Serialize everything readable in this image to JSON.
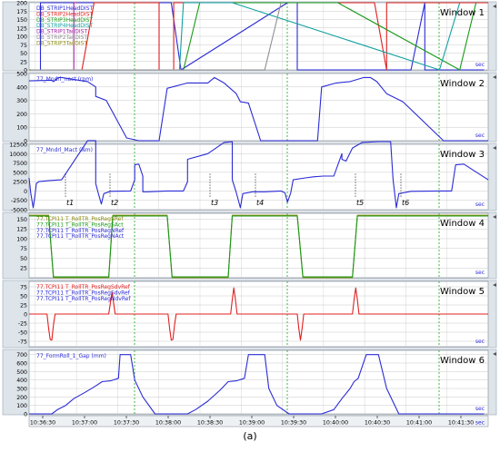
{
  "caption": "(a)",
  "x_ticks": [
    "10:36:30",
    "10:37:00",
    "10:37:30",
    "10:38:00",
    "10:38:30",
    "10:39:00",
    "10:39:30",
    "10:40:00",
    "10:40:30",
    "10:41:00",
    "10:41:30",
    "10:42:00"
  ],
  "sec_label": "sec",
  "time_markers": [
    "t1",
    "t2",
    "t3",
    "t4",
    "t5",
    "t6"
  ],
  "colors": {
    "blue": "#2b2bd6",
    "red": "#e02020",
    "green": "#1a9a1a",
    "teal": "#12a0a0",
    "olive": "#8a8a10",
    "purple": "#a020a0",
    "gray": "#909090",
    "panel_bg": "#dde4ea",
    "plot_bg": "#ffffff",
    "grid": "#c8c8c8",
    "vline": "#30b030"
  },
  "chart_data": [
    {
      "type": "line",
      "title": "Window 1",
      "ylim": [
        0,
        200
      ],
      "yticks": [
        "0",
        "25",
        "50",
        "75",
        "100",
        "125",
        "150",
        "175",
        "200"
      ],
      "legend": [
        "DB_STRIP1HeadDIST",
        "DB_STRIP2HeadDIST",
        "DB_STRIP3HeadDIST",
        "DB_STRIP4HeadDIST",
        "DB_STRIP1TailDIST",
        "DB_STRIP2TailDIST",
        "DB_STRIP3TailDIST"
      ],
      "series": [
        {
          "name": "DB_STRIP1HeadDIST",
          "color": "blue",
          "x": [
            0,
            14,
            14,
            175,
            187,
            187,
            318,
            330,
            330,
            470,
            487,
            487,
            560
          ],
          "y": [
            0,
            0,
            200,
            200,
            0,
            0,
            200,
            200,
            0,
            0,
            200,
            0,
            0
          ]
        },
        {
          "name": "DB_STRIP2HeadDIST",
          "color": "red",
          "x": [
            0,
            65,
            80,
            80,
            160,
            160,
            178,
            178,
            300,
            320,
            320,
            425,
            440,
            440,
            565
          ],
          "y": [
            0,
            0,
            200,
            200,
            200,
            0,
            0,
            200,
            200,
            200,
            200,
            200,
            0,
            200,
            200
          ]
        },
        {
          "name": "DB_STRIP3HeadDIST",
          "color": "green",
          "x": [
            0,
            190,
            210,
            210,
            365,
            380,
            530,
            550
          ],
          "y": [
            0,
            0,
            200,
            200,
            200,
            200,
            0,
            200
          ]
        },
        {
          "name": "DB_STRIP4HeadDIST",
          "color": "teal",
          "x": [
            0,
            185,
            190,
            250,
            505,
            530
          ],
          "y": [
            0,
            0,
            200,
            200,
            0,
            200
          ]
        },
        {
          "name": "DB_STRIP1TailDIST",
          "color": "purple",
          "x": [
            0,
            55,
            55,
            60
          ],
          "y": [
            0,
            0,
            200,
            200
          ]
        },
        {
          "name": "DB_STRIP2TailDIST",
          "color": "gray",
          "x": [
            0,
            290,
            310,
            310
          ],
          "y": [
            0,
            0,
            200,
            200
          ]
        },
        {
          "name": "DB_STRIP3TailDIST",
          "color": "olive",
          "x": [
            0,
            1,
            2
          ],
          "y": [
            0,
            0,
            0
          ]
        }
      ]
    },
    {
      "type": "line",
      "title": "Window 2",
      "ylim": [
        0,
        500
      ],
      "yticks": [
        "0",
        "100",
        "200",
        "300",
        "400",
        "500"
      ],
      "legend": [
        "77_Mndrl_nact (rpm)"
      ],
      "series": [
        {
          "name": "77_Mndrl_nact (rpm)",
          "color": "blue",
          "x": [
            0,
            28,
            30,
            36,
            40,
            72,
            82,
            82,
            95,
            120,
            135,
            135,
            155,
            160,
            170,
            195,
            195,
            220,
            228,
            228,
            240,
            255,
            260,
            270,
            285,
            305,
            355,
            360,
            378,
            378,
            395,
            412,
            420,
            428,
            440,
            460,
            510,
            520,
            550,
            565
          ],
          "y": [
            445,
            450,
            440,
            470,
            470,
            440,
            400,
            330,
            300,
            20,
            0,
            0,
            0,
            0,
            390,
            430,
            430,
            430,
            470,
            470,
            430,
            350,
            290,
            280,
            0,
            0,
            0,
            400,
            430,
            430,
            440,
            470,
            470,
            440,
            350,
            290,
            0,
            0,
            0,
            0
          ]
        }
      ]
    },
    {
      "type": "line",
      "title": "Window 3",
      "ylim": [
        -5000,
        12500
      ],
      "yticks": [
        "-5000",
        "-2500",
        "0",
        "2500",
        "5000",
        "7500",
        "10000",
        "12500"
      ],
      "legend": [
        "77_Mndrl_Mact (Nm)"
      ],
      "series": [
        {
          "name": "77_Mndrl_Mact (Nm)",
          "color": "blue",
          "x": [
            0,
            2,
            5,
            7,
            9,
            12,
            25,
            40,
            72,
            82,
            82,
            85,
            89,
            92,
            100,
            125,
            130,
            130,
            135,
            140,
            140,
            145,
            170,
            190,
            195,
            195,
            220,
            240,
            250,
            250,
            255,
            260,
            263,
            275,
            290,
            310,
            315,
            318,
            322,
            325,
            340,
            350,
            362,
            375,
            385,
            385,
            390,
            398,
            410,
            430,
            445,
            448,
            452,
            455,
            470,
            505,
            520,
            525,
            535,
            565
          ],
          "y": [
            3500,
            -500,
            -4500,
            -1500,
            2000,
            2500,
            2800,
            3000,
            13500,
            13500,
            2000,
            -500,
            -3500,
            -700,
            -100,
            0,
            3000,
            7000,
            7200,
            4000,
            -200,
            -200,
            0,
            0,
            2500,
            8500,
            10000,
            13000,
            13200,
            3000,
            -400,
            -4500,
            -700,
            -200,
            -200,
            0,
            -500,
            -3000,
            -500,
            3000,
            3500,
            3800,
            4000,
            4000,
            10000,
            8500,
            8000,
            11500,
            13000,
            13200,
            13200,
            3000,
            -4500,
            -700,
            -100,
            0,
            0,
            7000,
            7200,
            3000
          ]
        }
      ]
    },
    {
      "type": "line",
      "title": "Window 4",
      "ylim": [
        0,
        165
      ],
      "yticks": [
        "25",
        "50",
        "75",
        "100",
        "125",
        "150"
      ],
      "legend": [
        "77.TCPI11 T_RollTR_PosRegSRef",
        "77.TCPI11 T_RollTR_PosRegSAct",
        "77.TCPI11 T_RollTR_PosRegNRef",
        "77.TCPI11 T_RollTR_PosRegNAct"
      ],
      "series": [
        {
          "name": "77.TCPI11 T_RollTR_PosRegSRef",
          "color": "olive",
          "x": [
            0,
            24,
            30,
            98,
            103,
            170,
            176,
            245,
            250,
            330,
            337,
            398,
            404,
            565
          ],
          "y": [
            160,
            160,
            0,
            0,
            160,
            160,
            0,
            0,
            160,
            160,
            0,
            0,
            160,
            160
          ]
        },
        {
          "name": "77.TCPI11 T_RollTR_PosRegSAct",
          "color": "green",
          "x": [
            0,
            24,
            30,
            98,
            103,
            170,
            176,
            245,
            250,
            330,
            337,
            398,
            404,
            565
          ],
          "y": [
            158,
            158,
            2,
            2,
            158,
            158,
            2,
            2,
            158,
            158,
            2,
            2,
            158,
            158
          ]
        }
      ]
    },
    {
      "type": "line",
      "title": "Window 5",
      "ylim": [
        -90,
        90
      ],
      "yticks": [
        "-75",
        "-50",
        "-25",
        "0",
        "25",
        "50",
        "75"
      ],
      "legend": [
        "77.TCPI11 T_RollTR_PosRegSdvRef",
        "77.TCPI11 T_RollTR_PosRegSdvRef",
        "77.TCPI11 T_RollTR_PosRegNdvRef"
      ],
      "series": [
        {
          "name": "77.TCPI11 T_RollTR_PosRegSdvRef",
          "color": "red",
          "x": [
            0,
            22,
            24,
            26,
            28,
            30,
            32,
            98,
            100,
            102,
            104,
            106,
            171,
            173,
            175,
            177,
            179,
            181,
            248,
            250,
            252,
            254,
            256,
            330,
            332,
            334,
            336,
            338,
            398,
            400,
            402,
            404,
            406,
            565
          ],
          "y": [
            0,
            0,
            -40,
            -70,
            -72,
            -30,
            0,
            0,
            30,
            60,
            30,
            0,
            0,
            -40,
            -72,
            -70,
            -30,
            0,
            0,
            40,
            72,
            40,
            0,
            0,
            -40,
            -72,
            -40,
            0,
            0,
            40,
            72,
            40,
            0,
            0
          ]
        }
      ]
    },
    {
      "type": "line",
      "title": "Window 6",
      "ylim": [
        0,
        750
      ],
      "yticks": [
        "0",
        "100",
        "200",
        "300",
        "400",
        "500",
        "600",
        "700"
      ],
      "legend": [
        "77_FormRoll_1_Gap (mm)"
      ],
      "series": [
        {
          "name": "77_FormRoll_1_Gap (mm)",
          "color": "blue",
          "x": [
            0,
            10,
            28,
            35,
            45,
            55,
            70,
            82,
            90,
            100,
            110,
            112,
            122,
            125,
            130,
            140,
            155,
            165,
            190,
            195,
            205,
            220,
            235,
            240,
            245,
            255,
            265,
            270,
            280,
            290,
            295,
            305,
            320,
            330,
            345,
            360,
            375,
            385,
            395,
            400,
            405,
            415,
            425,
            430,
            440,
            455,
            475,
            495,
            525,
            545,
            560
          ],
          "y": [
            0,
            0,
            0,
            50,
            100,
            180,
            260,
            330,
            380,
            390,
            420,
            700,
            700,
            700,
            400,
            200,
            0,
            0,
            0,
            0,
            50,
            150,
            280,
            330,
            380,
            390,
            420,
            700,
            700,
            700,
            300,
            100,
            0,
            0,
            0,
            0,
            50,
            180,
            300,
            380,
            420,
            700,
            700,
            700,
            300,
            0,
            0,
            0,
            0,
            0,
            0
          ]
        }
      ]
    }
  ]
}
